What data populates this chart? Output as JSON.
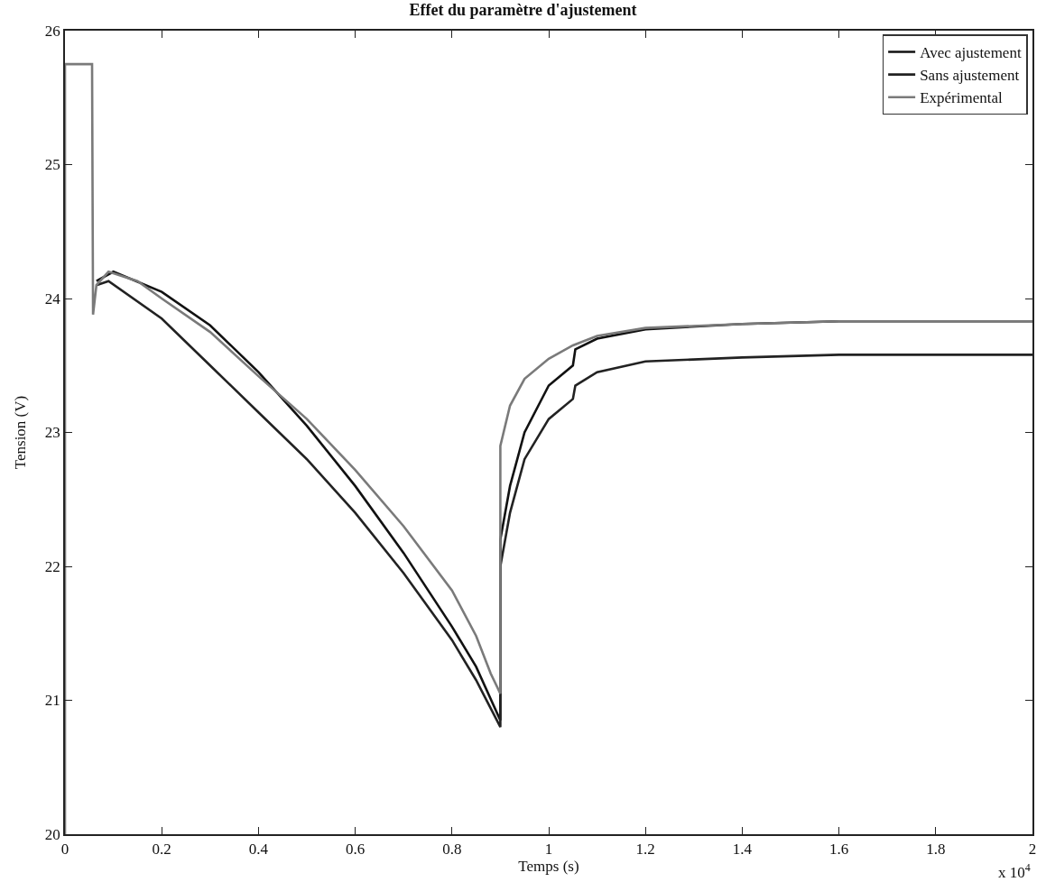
{
  "chart_data": {
    "type": "line",
    "title": "Effet du paramètre d'ajustement",
    "xlabel": "Temps (s)",
    "ylabel": "Tension (V)",
    "annotations": [
      "x 10$^{4}$"
    ],
    "xlim": [
      0,
      2
    ],
    "ylim": [
      20,
      26
    ],
    "xticks": [
      0,
      0.2,
      0.4,
      0.6,
      0.8,
      1,
      1.2,
      1.4,
      1.6,
      1.8,
      2
    ],
    "yticks": [
      20,
      21,
      22,
      23,
      24,
      25,
      26
    ],
    "grid": false,
    "legend": "top right",
    "marker": "none",
    "line_style": "solid",
    "series": [
      {
        "name": "Avec ajustement",
        "color": "#111111",
        "x": [
          0.065,
          0.1,
          0.2,
          0.3,
          0.4,
          0.5,
          0.6,
          0.7,
          0.8,
          0.85,
          0.9,
          0.9,
          0.92,
          0.95,
          1.0,
          1.05,
          1.055,
          1.1,
          1.2,
          1.4,
          1.6,
          2
        ],
        "values": [
          24.13,
          24.2,
          24.05,
          23.8,
          23.45,
          23.05,
          22.6,
          22.1,
          21.55,
          21.25,
          20.85,
          22.2,
          22.6,
          23.0,
          23.35,
          23.5,
          23.62,
          23.7,
          23.77,
          23.81,
          23.83,
          23.83
        ]
      },
      {
        "name": "Sans ajustement",
        "color": "#222222",
        "x": [
          0.065,
          0.09,
          0.2,
          0.3,
          0.4,
          0.5,
          0.6,
          0.7,
          0.8,
          0.85,
          0.9,
          0.9,
          0.92,
          0.95,
          1.0,
          1.05,
          1.055,
          1.1,
          1.2,
          1.4,
          1.6,
          2
        ],
        "values": [
          24.1,
          24.13,
          23.85,
          23.5,
          23.15,
          22.8,
          22.4,
          21.95,
          21.45,
          21.15,
          20.8,
          22.0,
          22.4,
          22.8,
          23.1,
          23.25,
          23.35,
          23.45,
          23.53,
          23.56,
          23.58,
          23.58
        ]
      },
      {
        "name": "Expérimental",
        "color": "#7a7a7a",
        "x": [
          0,
          0,
          0.056,
          0.058,
          0.065,
          0.09,
          0.15,
          0.2,
          0.3,
          0.4,
          0.5,
          0.6,
          0.7,
          0.8,
          0.85,
          0.88,
          0.9,
          0.9,
          0.92,
          0.95,
          1.0,
          1.05,
          1.1,
          1.2,
          1.4,
          1.6,
          2
        ],
        "values": [
          20,
          25.75,
          25.75,
          23.88,
          24.1,
          24.2,
          24.13,
          24.0,
          23.75,
          23.42,
          23.1,
          22.72,
          22.3,
          21.82,
          21.48,
          21.2,
          21.05,
          22.9,
          23.2,
          23.4,
          23.55,
          23.65,
          23.72,
          23.78,
          23.81,
          23.83,
          23.83
        ]
      }
    ]
  }
}
